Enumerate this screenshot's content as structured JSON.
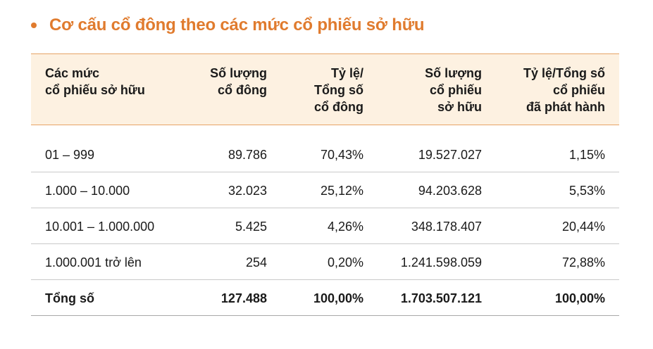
{
  "title": "Cơ cấu cổ đông theo các mức cổ phiếu sở hữu",
  "header": {
    "col1": [
      "Các mức",
      "cổ phiếu sở hữu"
    ],
    "col2": [
      "Số lượng",
      "cổ đông"
    ],
    "col3": [
      "Tỷ lệ/",
      "Tổng số",
      "cổ đông"
    ],
    "col4": [
      "Số lượng",
      "cổ phiếu",
      "sở hữu"
    ],
    "col5": [
      "Tỷ lệ/Tổng số",
      "cổ phiếu",
      "đã phát hành"
    ]
  },
  "rows": [
    {
      "level": "01 – 999",
      "holders": "89.786",
      "holder_ratio": "70,43%",
      "shares": "19.527.027",
      "share_ratio": "1,15%"
    },
    {
      "level": "1.000 – 10.000",
      "holders": "32.023",
      "holder_ratio": "25,12%",
      "shares": "94.203.628",
      "share_ratio": "5,53%"
    },
    {
      "level": "10.001 – 1.000.000",
      "holders": "5.425",
      "holder_ratio": "4,26%",
      "shares": "348.178.407",
      "share_ratio": "20,44%"
    },
    {
      "level": "1.000.001 trở lên",
      "holders": "254",
      "holder_ratio": "0,20%",
      "shares": "1.241.598.059",
      "share_ratio": "72,88%"
    }
  ],
  "total": {
    "level": "Tổng số",
    "holders": "127.488",
    "holder_ratio": "100,00%",
    "shares": "1.703.507.121",
    "share_ratio": "100,00%"
  },
  "colors": {
    "accent": "#e07b2e",
    "header_bg": "#fdf1e1"
  }
}
